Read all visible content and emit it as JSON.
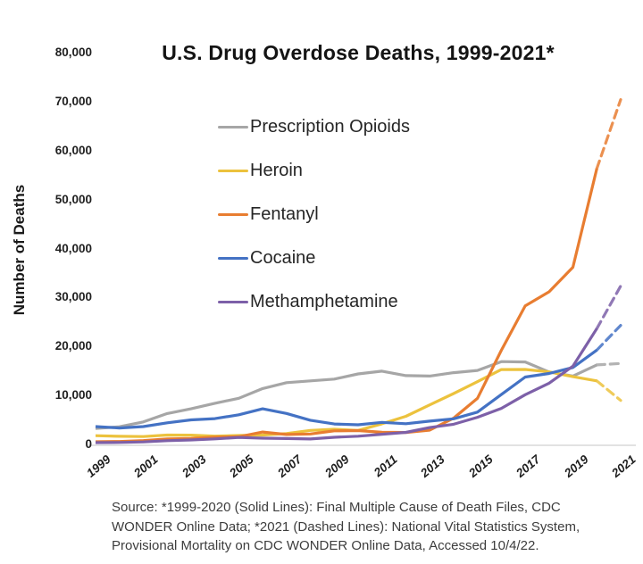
{
  "source_lines": [
    "Source: *1999-2020 (Solid Lines): Final Multiple Cause of Death Files, CDC",
    "WONDER Online Data; *2021 (Dashed Lines): National Vital Statistics System,",
    "Provisional Mortality on CDC WONDER Online Data, Accessed 10/4/22."
  ],
  "chart_data": {
    "type": "line",
    "title": "U.S. Drug Overdose Deaths, 1999-2021*",
    "ylabel": "Number of Deaths",
    "xlabel": "",
    "ylim": [
      0,
      80000
    ],
    "ytick_step": 10000,
    "ytick_labels": [
      "0",
      "10,000",
      "20,000",
      "30,000",
      "40,000",
      "50,000",
      "60,000",
      "70,000",
      "80,000"
    ],
    "x": [
      1999,
      2000,
      2001,
      2002,
      2003,
      2004,
      2005,
      2006,
      2007,
      2008,
      2009,
      2010,
      2011,
      2012,
      2013,
      2014,
      2015,
      2016,
      2017,
      2018,
      2019,
      2020,
      2021
    ],
    "x_tick_labels": [
      "1999",
      "2001",
      "2003",
      "2005",
      "2007",
      "2009",
      "2011",
      "2013",
      "2015",
      "2017",
      "2019",
      "2021"
    ],
    "grid": "off",
    "legend_position": "inside-upper-left",
    "line_style_note": "solid 1999-2020, dashed 2020-2021",
    "axis_line_color": "#d9d9d9",
    "series": [
      {
        "name": "Prescription Opioids",
        "color": "#a6a6a6",
        "values": [
          3442,
          3785,
          4770,
          6483,
          7461,
          8577,
          9612,
          11589,
          12796,
          13149,
          13523,
          14583,
          15140,
          14240,
          14145,
          14838,
          15281,
          17087,
          17029,
          14975,
          14139,
          16416,
          16706
        ]
      },
      {
        "name": "Heroin",
        "color": "#ecc23d",
        "values": [
          1960,
          1842,
          1779,
          2089,
          2080,
          1878,
          2009,
          2088,
          2399,
          3041,
          3278,
          3036,
          4397,
          5925,
          8257,
          10574,
          12989,
          15469,
          15482,
          14996,
          14019,
          13165,
          9173
        ]
      },
      {
        "name": "Fentanyl",
        "color": "#e87d31",
        "values": [
          730,
          782,
          957,
          1295,
          1400,
          1664,
          1742,
          2707,
          2213,
          2306,
          2946,
          3007,
          2666,
          2628,
          3105,
          5544,
          9580,
          19413,
          28466,
          31335,
          36359,
          56516,
          70601
        ]
      },
      {
        "name": "Cocaine",
        "color": "#4472c4",
        "values": [
          3822,
          3544,
          3833,
          4599,
          5199,
          5443,
          6226,
          7448,
          6512,
          5129,
          4350,
          4183,
          4681,
          4404,
          4944,
          5415,
          6784,
          10375,
          13942,
          14666,
          15883,
          19447,
          24486
        ]
      },
      {
        "name": "Methamphetamine",
        "color": "#7d60a8",
        "values": [
          547,
          578,
          687,
          941,
          1096,
          1305,
          1608,
          1462,
          1378,
          1302,
          1632,
          1854,
          2266,
          2635,
          3627,
          4298,
          5716,
          7542,
          10333,
          12676,
          16167,
          23837,
          32537
        ]
      }
    ]
  }
}
